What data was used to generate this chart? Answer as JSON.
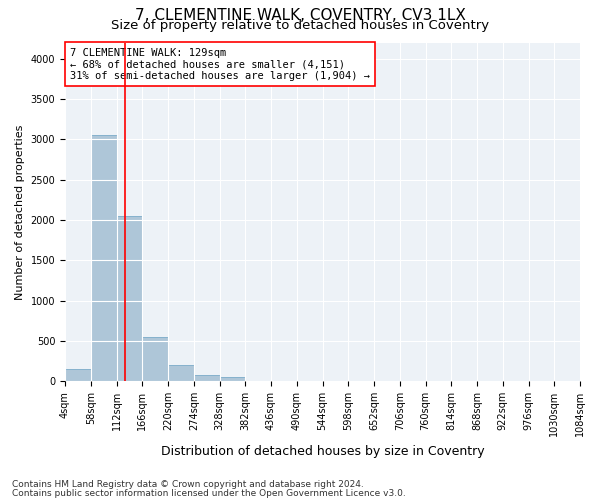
{
  "title1": "7, CLEMENTINE WALK, COVENTRY, CV3 1LX",
  "title2": "Size of property relative to detached houses in Coventry",
  "xlabel": "Distribution of detached houses by size in Coventry",
  "ylabel": "Number of detached properties",
  "footnote1": "Contains HM Land Registry data © Crown copyright and database right 2024.",
  "footnote2": "Contains public sector information licensed under the Open Government Licence v3.0.",
  "bin_edges": [
    4,
    58,
    112,
    166,
    220,
    274,
    328,
    382,
    436,
    490,
    544,
    598,
    652,
    706,
    760,
    814,
    868,
    922,
    976,
    1030,
    1084
  ],
  "bar_heights": [
    150,
    3050,
    2050,
    550,
    205,
    75,
    50,
    0,
    0,
    0,
    0,
    0,
    0,
    0,
    0,
    0,
    0,
    0,
    0,
    0
  ],
  "bar_color": "#aec6d8",
  "bar_edge_color": "#7aaac8",
  "red_line_x": 129,
  "annotation_text": "7 CLEMENTINE WALK: 129sqm\n← 68% of detached houses are smaller (4,151)\n31% of semi-detached houses are larger (1,904) →",
  "ylim": [
    0,
    4200
  ],
  "yticks": [
    0,
    500,
    1000,
    1500,
    2000,
    2500,
    3000,
    3500,
    4000
  ],
  "bg_color": "#edf2f7",
  "grid_color": "white",
  "title1_fontsize": 11,
  "title2_fontsize": 9.5,
  "xlabel_fontsize": 9,
  "ylabel_fontsize": 8,
  "annot_fontsize": 7.5,
  "tick_fontsize": 7,
  "footnote_fontsize": 6.5
}
